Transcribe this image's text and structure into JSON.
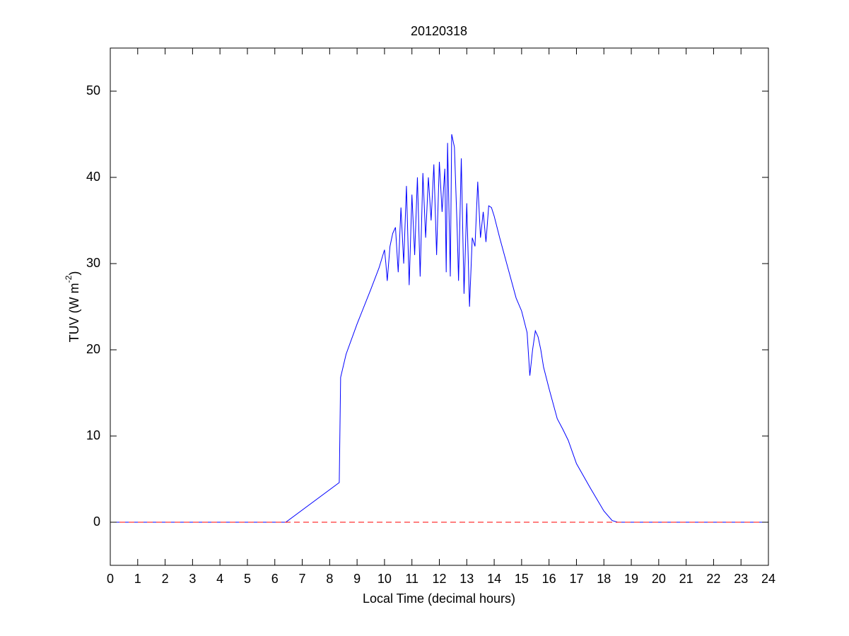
{
  "chart_data": {
    "type": "line",
    "title": "20120318",
    "xlabel": "Local Time (decimal hours)",
    "ylabel": {
      "text": "TUV (W m",
      "superscript": "-2",
      "suffix": ")"
    },
    "xlim": [
      0,
      24
    ],
    "ylim": [
      -5,
      55
    ],
    "xticks": [
      0,
      1,
      2,
      3,
      4,
      5,
      6,
      7,
      8,
      9,
      10,
      11,
      12,
      13,
      14,
      15,
      16,
      17,
      18,
      19,
      20,
      21,
      22,
      23,
      24
    ],
    "yticks": [
      0,
      10,
      20,
      30,
      40,
      50
    ],
    "grid": false,
    "series": [
      {
        "color": "#0000ff",
        "dash": false,
        "x": [
          0,
          6.4,
          8.35,
          8.4,
          8.6,
          9,
          9.5,
          9.8,
          10,
          10.05,
          10.1,
          10.2,
          10.3,
          10.4,
          10.5,
          10.6,
          10.7,
          10.8,
          10.9,
          11,
          11.1,
          11.2,
          11.3,
          11.4,
          11.5,
          11.6,
          11.7,
          11.8,
          11.9,
          12,
          12.1,
          12.2,
          12.25,
          12.3,
          12.4,
          12.45,
          12.55,
          12.65,
          12.7,
          12.8,
          12.9,
          13,
          13.1,
          13.2,
          13.3,
          13.4,
          13.5,
          13.6,
          13.7,
          13.8,
          13.9,
          14,
          14.2,
          14.5,
          14.8,
          15,
          15.2,
          15.3,
          15.4,
          15.5,
          15.6,
          15.7,
          15.8,
          16,
          16.3,
          16.5,
          16.7,
          17,
          17.5,
          18,
          18.3,
          18.5,
          24
        ],
        "values": [
          0,
          0,
          4.6,
          16.8,
          19.5,
          23,
          27,
          29.5,
          31.6,
          30,
          28,
          32,
          33.5,
          34.2,
          29,
          36.5,
          30,
          39,
          27.5,
          38,
          31,
          40,
          28.5,
          40.5,
          33,
          40,
          35,
          41.5,
          31,
          41.8,
          36,
          41,
          29,
          44,
          28.5,
          45,
          43.5,
          34,
          28,
          42.2,
          26.5,
          37,
          25,
          33,
          32,
          39.5,
          33,
          36,
          32.5,
          36.7,
          36.5,
          35.5,
          33,
          29.5,
          26,
          24.5,
          22,
          17,
          20,
          22.2,
          21.5,
          20,
          18,
          15.5,
          12,
          10.8,
          9.5,
          6.8,
          4,
          1.3,
          0.2,
          0,
          0
        ]
      },
      {
        "color": "#ff0000",
        "dash": true,
        "x": [
          0,
          24
        ],
        "values": [
          0,
          0
        ]
      }
    ]
  }
}
